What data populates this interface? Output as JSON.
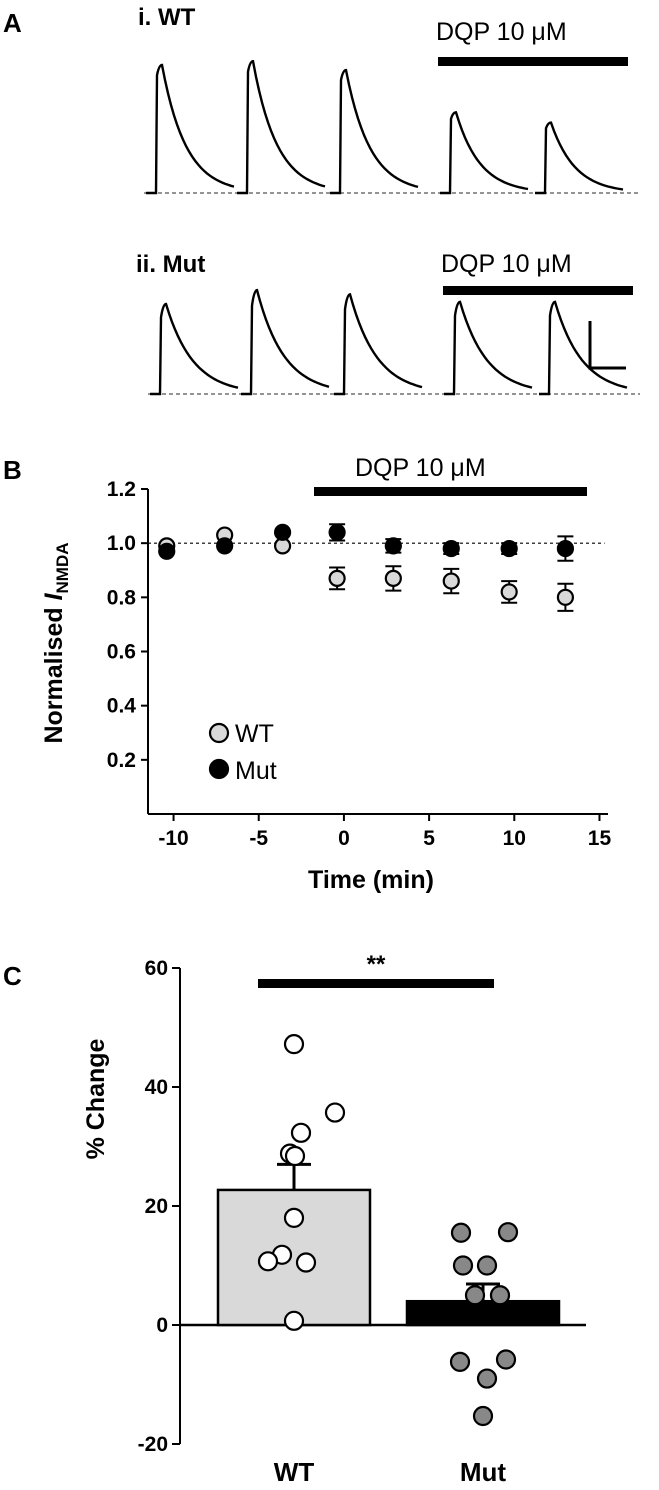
{
  "panels": {
    "a": {
      "letter": "A",
      "wt_title": "i. WT",
      "mut_title": "ii. Mut",
      "drug_label_wt": "DQP 10 μM",
      "drug_label_mut": "DQP 10 μM",
      "traces_wt_peak_fraction": [
        1.0,
        1.03,
        0.96,
        0.63,
        0.55
      ],
      "traces_mut_peak_fraction": [
        0.85,
        0.98,
        0.94,
        0.87,
        0.87
      ]
    },
    "b": {
      "letter": "B",
      "drug_label": "DQP 10 μM",
      "legend": [
        {
          "label": "WT",
          "color": "#d9d9d9"
        },
        {
          "label": "Mut",
          "color": "#000000"
        }
      ]
    },
    "c": {
      "letter": "C",
      "significance": "**"
    }
  },
  "chart_data": [
    {
      "type": "scatter",
      "ylabel": "Normalised INMDA",
      "ylabel_main": "Normalised ",
      "ylabel_italic": "I",
      "ylabel_sub": "NMDA",
      "xlabel": "Time (min)",
      "xlim": [
        -11.5,
        15.5
      ],
      "ylim": [
        0.0,
        1.2
      ],
      "xticks": [
        -10,
        -5,
        0,
        5,
        10,
        15
      ],
      "yticks": [
        0.2,
        0.4,
        0.6,
        0.8,
        1.0,
        1.2
      ],
      "ytick_labels": [
        "0.2",
        "0.4",
        "0.6",
        "0.8",
        "1.0",
        "1.2"
      ],
      "reference_line": 1.0,
      "drug_period": [
        -2,
        14
      ],
      "series": [
        {
          "name": "WT",
          "color": "#d9d9d9",
          "x": [
            -10.4,
            -7.0,
            -3.6,
            -0.4,
            2.9,
            6.3,
            9.7,
            13.0
          ],
          "y": [
            0.99,
            1.03,
            0.99,
            0.87,
            0.87,
            0.86,
            0.82,
            0.8
          ],
          "err": [
            0,
            0,
            0,
            0.04,
            0.045,
            0.045,
            0.04,
            0.05
          ]
        },
        {
          "name": "Mut",
          "color": "#000000",
          "x": [
            -10.4,
            -7.0,
            -3.6,
            -0.4,
            2.9,
            6.3,
            9.7,
            13.0
          ],
          "y": [
            0.97,
            0.99,
            1.04,
            1.04,
            0.99,
            0.98,
            0.98,
            0.98
          ],
          "err": [
            0,
            0,
            0,
            0.03,
            0.025,
            0.02,
            0.02,
            0.045
          ]
        }
      ]
    },
    {
      "type": "bar",
      "ylabel": "% Change",
      "categories": [
        "WT",
        "Mut"
      ],
      "ylim": [
        -20,
        60
      ],
      "yticks": [
        -20,
        0,
        20,
        40,
        60
      ],
      "ytick_labels": [
        "-20",
        "0",
        "20",
        "40",
        "60"
      ],
      "values": [
        22.7,
        4.0
      ],
      "sem": [
        4.3,
        2.9
      ],
      "bar_colors": [
        "#d9d9d9",
        "#000000"
      ],
      "point_colors": [
        "#ffffff",
        "#888888"
      ],
      "points": [
        [
          47.2,
          35.7,
          32.3,
          28.8,
          28.4,
          18.0,
          11.8,
          10.7,
          10.5,
          0.7
        ],
        [
          15.6,
          15.5,
          10.0,
          10.0,
          5.0,
          5.0,
          -5.8,
          -6.2,
          -9.0,
          -15.3
        ]
      ]
    }
  ]
}
